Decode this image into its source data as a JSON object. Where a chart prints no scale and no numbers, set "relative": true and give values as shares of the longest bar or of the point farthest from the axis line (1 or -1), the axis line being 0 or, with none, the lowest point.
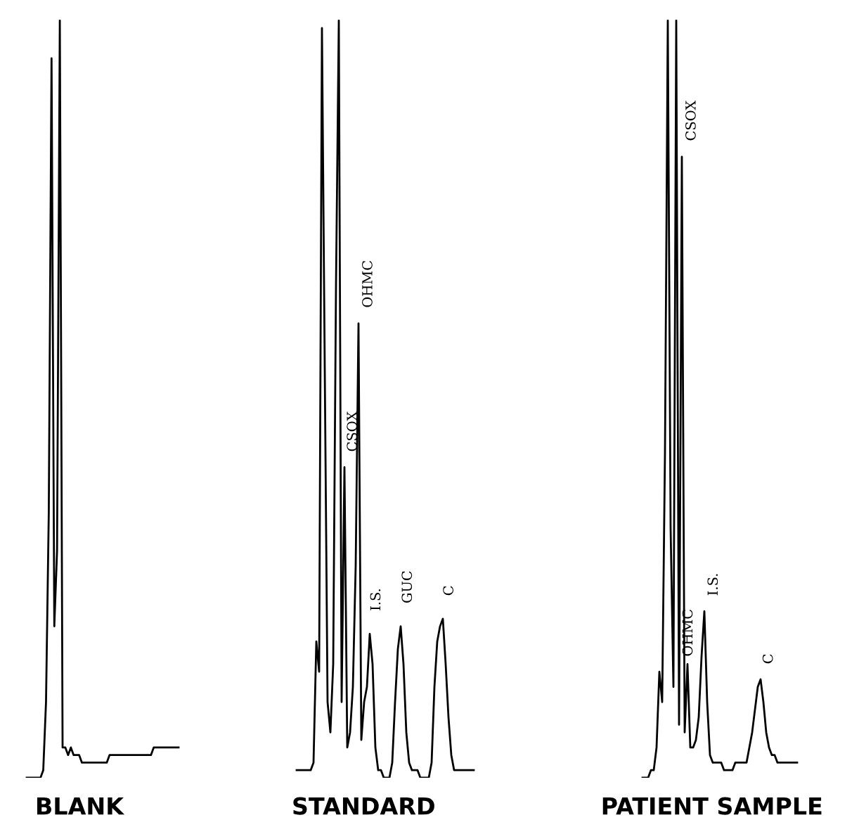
{
  "chart_data": [
    {
      "type": "line",
      "xlabel": "BLANK",
      "relative": true,
      "color": "#000000",
      "categories": [
        null,
        null,
        null,
        null,
        null,
        null,
        null,
        null,
        null,
        null,
        null,
        null,
        null,
        null,
        null,
        null,
        null,
        null,
        null,
        null,
        null,
        null,
        null,
        null,
        null,
        null,
        null,
        null,
        null,
        null,
        null,
        null,
        null,
        null,
        null,
        null,
        null,
        null,
        null,
        null,
        null,
        null,
        null,
        null,
        null,
        null,
        null,
        null,
        null,
        null,
        null,
        null,
        null,
        null,
        null,
        null
      ],
      "values": [
        0.0,
        0.0,
        0.0,
        0.0,
        0.0,
        0.0,
        0.01,
        0.1,
        0.35,
        0.95,
        0.2,
        0.3,
        1.0,
        0.04,
        0.04,
        0.03,
        0.04,
        0.03,
        0.03,
        0.03,
        0.02,
        0.02,
        0.02,
        0.02,
        0.02,
        0.02,
        0.02,
        0.02,
        0.02,
        0.02,
        0.03,
        0.03,
        0.03,
        0.03,
        0.03,
        0.03,
        0.03,
        0.03,
        0.03,
        0.03,
        0.03,
        0.03,
        0.03,
        0.03,
        0.03,
        0.03,
        0.04,
        0.04,
        0.04,
        0.04,
        0.04,
        0.04,
        0.04,
        0.04,
        0.04,
        0.04
      ]
    },
    {
      "type": "line",
      "xlabel": "STANDARD",
      "relative": true,
      "color": "#000000",
      "categories": [
        null,
        null,
        null,
        null,
        null,
        null,
        null,
        null,
        null,
        null,
        null,
        null,
        null,
        null,
        null,
        null,
        null,
        null,
        null,
        null,
        null,
        null,
        null,
        null,
        null,
        null,
        null,
        null,
        null,
        null,
        null,
        null,
        null,
        null,
        null,
        null,
        null,
        null,
        null,
        null,
        null,
        null,
        null,
        null,
        null,
        null,
        null,
        null,
        null,
        null,
        null,
        null,
        null,
        null,
        null,
        null,
        null,
        null,
        null,
        null,
        null,
        null,
        null,
        null
      ],
      "values": [
        0.01,
        0.01,
        0.01,
        0.01,
        0.01,
        0.01,
        0.02,
        0.18,
        0.14,
        0.99,
        0.54,
        0.1,
        0.06,
        0.15,
        0.65,
        1.0,
        0.1,
        0.41,
        0.04,
        0.06,
        0.12,
        0.28,
        0.6,
        0.05,
        0.1,
        0.12,
        0.19,
        0.15,
        0.04,
        0.01,
        0.01,
        0.0,
        0.0,
        0.0,
        0.02,
        0.1,
        0.17,
        0.2,
        0.15,
        0.06,
        0.02,
        0.01,
        0.01,
        0.01,
        0.0,
        0.0,
        0.0,
        0.0,
        0.02,
        0.12,
        0.18,
        0.2,
        0.21,
        0.15,
        0.08,
        0.03,
        0.01,
        0.01,
        0.01,
        0.01,
        0.01,
        0.01,
        0.01,
        0.01
      ],
      "annotations": [
        "CSOX",
        "OHMC",
        "I.S.",
        "GUC",
        "C"
      ]
    },
    {
      "type": "line",
      "xlabel": "PATIENT SAMPLE",
      "relative": true,
      "color": "#000000",
      "categories": [
        null,
        null,
        null,
        null,
        null,
        null,
        null,
        null,
        null,
        null,
        null,
        null,
        null,
        null,
        null,
        null,
        null,
        null,
        null,
        null,
        null,
        null,
        null,
        null,
        null,
        null,
        null,
        null,
        null,
        null,
        null,
        null,
        null,
        null,
        null,
        null,
        null,
        null,
        null,
        null,
        null,
        null,
        null,
        null,
        null,
        null,
        null,
        null,
        null,
        null,
        null,
        null,
        null,
        null,
        null,
        null
      ],
      "values": [
        0.0,
        0.0,
        0.0,
        0.01,
        0.01,
        0.04,
        0.14,
        0.1,
        0.43,
        1.0,
        0.33,
        0.12,
        1.0,
        0.07,
        0.82,
        0.06,
        0.15,
        0.04,
        0.04,
        0.05,
        0.08,
        0.16,
        0.22,
        0.1,
        0.03,
        0.02,
        0.02,
        0.02,
        0.02,
        0.01,
        0.01,
        0.01,
        0.01,
        0.02,
        0.02,
        0.02,
        0.02,
        0.02,
        0.04,
        0.06,
        0.09,
        0.12,
        0.13,
        0.1,
        0.06,
        0.04,
        0.03,
        0.03,
        0.02,
        0.02,
        0.02,
        0.02,
        0.02,
        0.02,
        0.02,
        0.02
      ],
      "annotations": [
        "CSOX",
        "OHMC",
        "I.S.",
        "C"
      ]
    }
  ]
}
